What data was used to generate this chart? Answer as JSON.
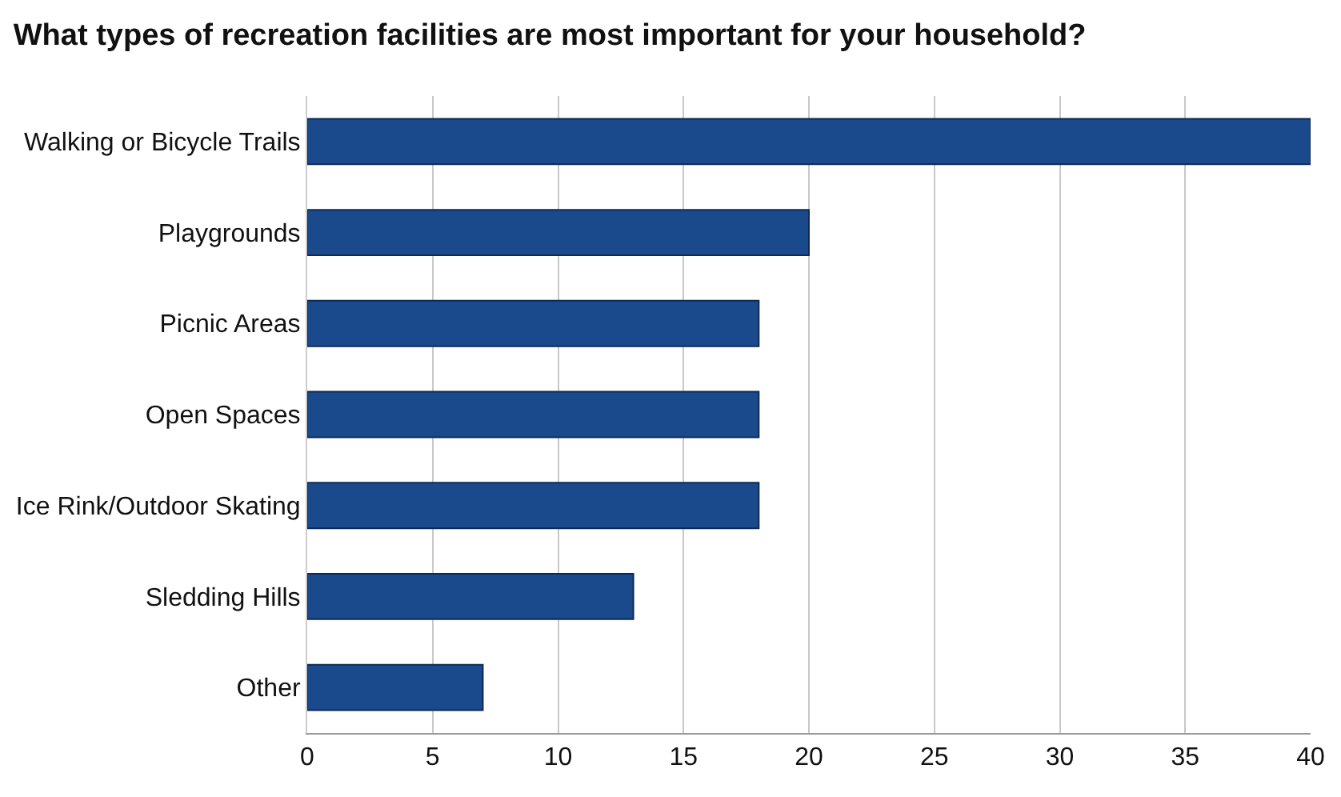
{
  "chart_data": {
    "type": "bar",
    "orientation": "horizontal",
    "title": "What types of recreation facilities are most important for your household?",
    "categories": [
      "Walking or Bicycle Trails",
      "Playgrounds",
      "Picnic Areas",
      "Open Spaces",
      "Ice Rink/Outdoor Skating",
      "Sledding Hills",
      "Other"
    ],
    "values": [
      40,
      20,
      18,
      18,
      18,
      13,
      7
    ],
    "color": "#1a4a8c",
    "xlim": [
      0,
      40
    ],
    "xticks": [
      0,
      5,
      10,
      15,
      20,
      25,
      30,
      35,
      40
    ],
    "grid": "x"
  }
}
